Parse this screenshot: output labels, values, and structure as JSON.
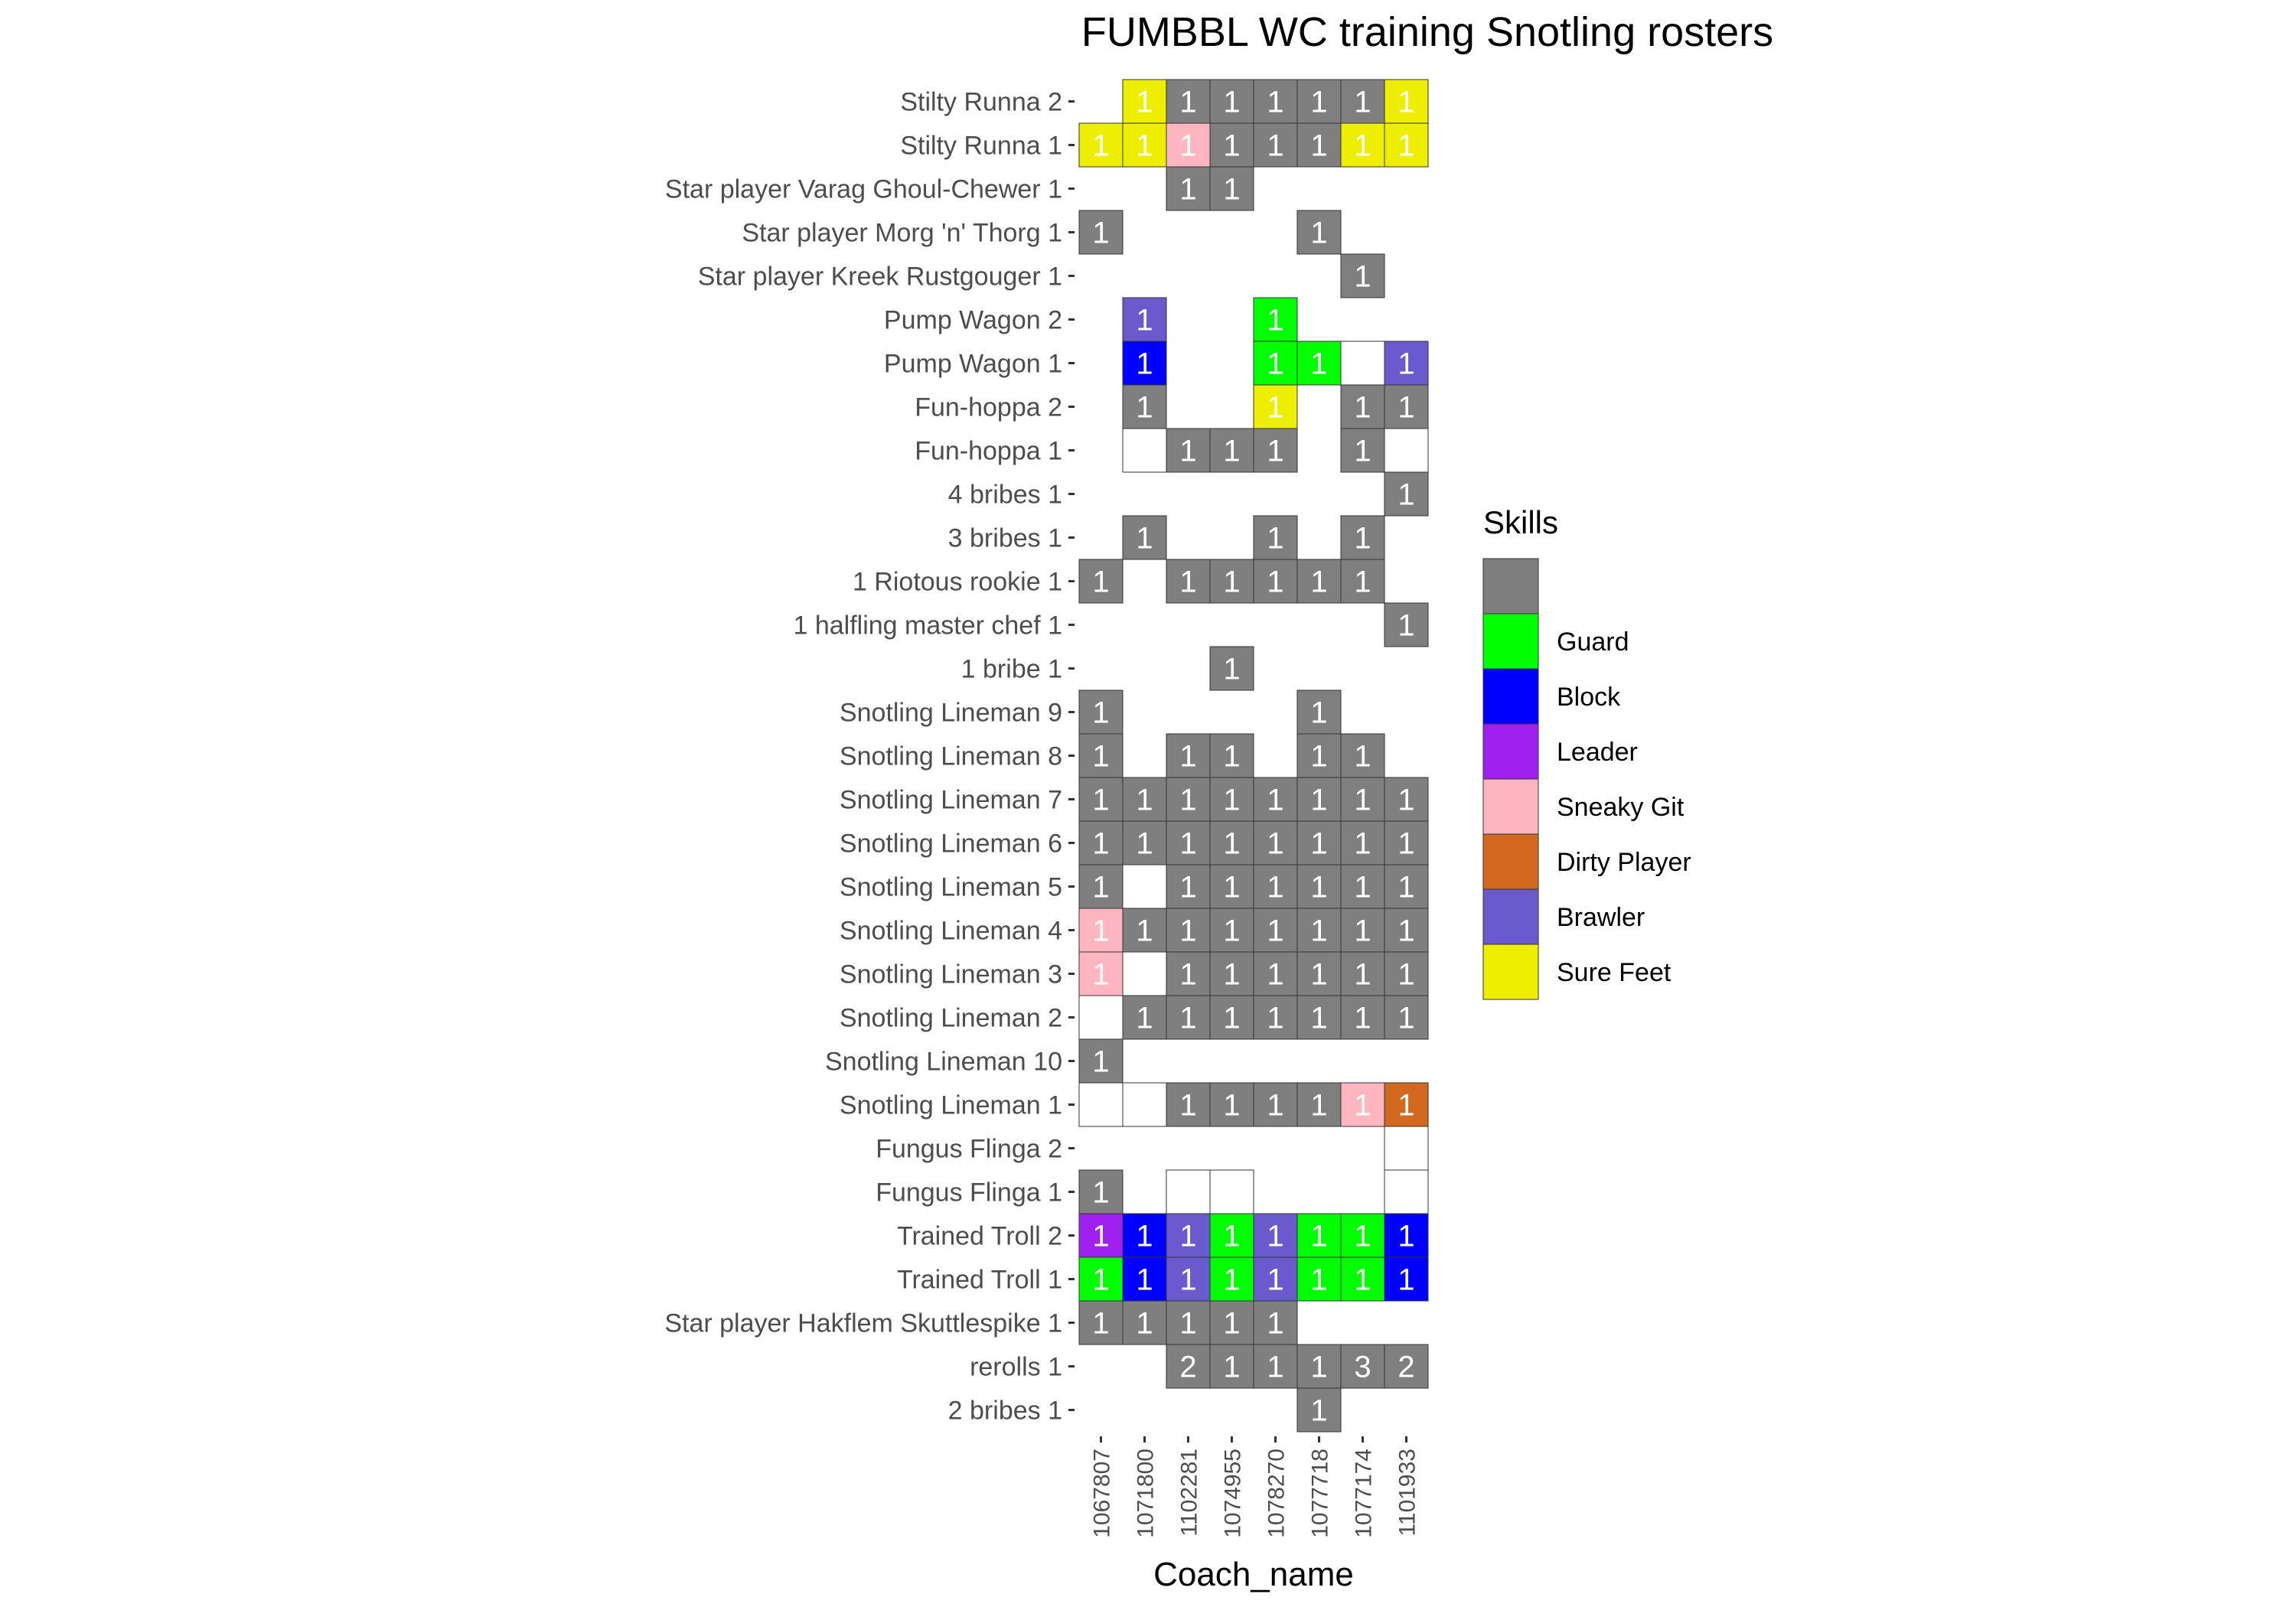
{
  "chart_data": {
    "type": "heatmap",
    "title": "FUMBBL WC training Snotling rosters",
    "xlabel": "Coach_name",
    "ylabel": "",
    "x": [
      "1067807",
      "1071800",
      "1102281",
      "1074955",
      "1078270",
      "1077718",
      "1077174",
      "1101933"
    ],
    "y": [
      "Stilty Runna 2",
      "Stilty Runna 1",
      "Star player Varag Ghoul-Chewer 1",
      "Star player Morg 'n' Thorg 1",
      "Star player Kreek Rustgouger 1",
      "Pump Wagon 2",
      "Pump Wagon 1",
      "Fun-hoppa 2",
      "Fun-hoppa 1",
      "4 bribes 1",
      "3 bribes 1",
      "1 Riotous rookie 1",
      "1 halfling master chef 1",
      "1 bribe 1",
      "Snotling Lineman 9",
      "Snotling Lineman 8",
      "Snotling Lineman 7",
      "Snotling Lineman 6",
      "Snotling Lineman 5",
      "Snotling Lineman 4",
      "Snotling Lineman 3",
      "Snotling Lineman 2",
      "Snotling Lineman 10",
      "Snotling Lineman 1",
      "Fungus Flinga 2",
      "Fungus Flinga 1",
      "Trained Troll 2",
      "Trained Troll 1",
      "Star player Hakflem Skuttlespike 1",
      "rerolls 1",
      "2 bribes 1"
    ],
    "legend": {
      "title": "Skills",
      "position": "right",
      "entries": [
        {
          "key": "none",
          "label": "",
          "color": "#7f7f7f"
        },
        {
          "key": "guard",
          "label": "Guard",
          "color": "#00ff00"
        },
        {
          "key": "block",
          "label": "Block",
          "color": "#0000ff"
        },
        {
          "key": "leader",
          "label": "Leader",
          "color": "#a020f0"
        },
        {
          "key": "sneaky",
          "label": "Sneaky Git",
          "color": "#ffb6c1"
        },
        {
          "key": "dirty",
          "label": "Dirty Player",
          "color": "#d2691e"
        },
        {
          "key": "brawler",
          "label": "Brawler",
          "color": "#6a5acd"
        },
        {
          "key": "surefeet",
          "label": "Sure Feet",
          "color": "#eeee00"
        }
      ]
    },
    "cells": [
      {
        "y": "Stilty Runna 2",
        "x": "1071800",
        "value": 1,
        "skill": "surefeet"
      },
      {
        "y": "Stilty Runna 2",
        "x": "1102281",
        "value": 1,
        "skill": "none"
      },
      {
        "y": "Stilty Runna 2",
        "x": "1074955",
        "value": 1,
        "skill": "none"
      },
      {
        "y": "Stilty Runna 2",
        "x": "1078270",
        "value": 1,
        "skill": "none"
      },
      {
        "y": "Stilty Runna 2",
        "x": "1077718",
        "value": 1,
        "skill": "none"
      },
      {
        "y": "Stilty Runna 2",
        "x": "1077174",
        "value": 1,
        "skill": "none"
      },
      {
        "y": "Stilty Runna 2",
        "x": "1101933",
        "value": 1,
        "skill": "surefeet"
      },
      {
        "y": "Stilty Runna 1",
        "x": "1067807",
        "value": 1,
        "skill": "surefeet"
      },
      {
        "y": "Stilty Runna 1",
        "x": "1071800",
        "value": 1,
        "skill": "surefeet"
      },
      {
        "y": "Stilty Runna 1",
        "x": "1102281",
        "value": 1,
        "skill": "sneaky"
      },
      {
        "y": "Stilty Runna 1",
        "x": "1074955",
        "value": 1,
        "skill": "none"
      },
      {
        "y": "Stilty Runna 1",
        "x": "1078270",
        "value": 1,
        "skill": "none"
      },
      {
        "y": "Stilty Runna 1",
        "x": "1077718",
        "value": 1,
        "skill": "none"
      },
      {
        "y": "Stilty Runna 1",
        "x": "1077174",
        "value": 1,
        "skill": "surefeet"
      },
      {
        "y": "Stilty Runna 1",
        "x": "1101933",
        "value": 1,
        "skill": "surefeet"
      },
      {
        "y": "Star player Varag Ghoul-Chewer 1",
        "x": "1102281",
        "value": 1,
        "skill": "none"
      },
      {
        "y": "Star player Varag Ghoul-Chewer 1",
        "x": "1074955",
        "value": 1,
        "skill": "none"
      },
      {
        "y": "Star player Morg 'n' Thorg 1",
        "x": "1067807",
        "value": 1,
        "skill": "none"
      },
      {
        "y": "Star player Morg 'n' Thorg 1",
        "x": "1077718",
        "value": 1,
        "skill": "none"
      },
      {
        "y": "Star player Kreek Rustgouger 1",
        "x": "1077174",
        "value": 1,
        "skill": "none"
      },
      {
        "y": "Pump Wagon 2",
        "x": "1071800",
        "value": 1,
        "skill": "brawler"
      },
      {
        "y": "Pump Wagon 2",
        "x": "1078270",
        "value": 1,
        "skill": "guard"
      },
      {
        "y": "Pump Wagon 1",
        "x": "1071800",
        "value": 1,
        "skill": "block"
      },
      {
        "y": "Pump Wagon 1",
        "x": "1078270",
        "value": 1,
        "skill": "guard"
      },
      {
        "y": "Pump Wagon 1",
        "x": "1077718",
        "value": 1,
        "skill": "guard"
      },
      {
        "y": "Pump Wagon 1",
        "x": "1077174",
        "value": null,
        "skill": "empty"
      },
      {
        "y": "Pump Wagon 1",
        "x": "1101933",
        "value": 1,
        "skill": "brawler"
      },
      {
        "y": "Fun-hoppa 2",
        "x": "1071800",
        "value": 1,
        "skill": "none"
      },
      {
        "y": "Fun-hoppa 2",
        "x": "1078270",
        "value": 1,
        "skill": "surefeet"
      },
      {
        "y": "Fun-hoppa 2",
        "x": "1077174",
        "value": 1,
        "skill": "none"
      },
      {
        "y": "Fun-hoppa 2",
        "x": "1101933",
        "value": 1,
        "skill": "none"
      },
      {
        "y": "Fun-hoppa 1",
        "x": "1071800",
        "value": null,
        "skill": "empty"
      },
      {
        "y": "Fun-hoppa 1",
        "x": "1102281",
        "value": 1,
        "skill": "none"
      },
      {
        "y": "Fun-hoppa 1",
        "x": "1074955",
        "value": 1,
        "skill": "none"
      },
      {
        "y": "Fun-hoppa 1",
        "x": "1078270",
        "value": 1,
        "skill": "none"
      },
      {
        "y": "Fun-hoppa 1",
        "x": "1077174",
        "value": 1,
        "skill": "none"
      },
      {
        "y": "Fun-hoppa 1",
        "x": "1101933",
        "value": null,
        "skill": "empty"
      },
      {
        "y": "4 bribes 1",
        "x": "1101933",
        "value": 1,
        "skill": "none"
      },
      {
        "y": "3 bribes 1",
        "x": "1071800",
        "value": 1,
        "skill": "none"
      },
      {
        "y": "3 bribes 1",
        "x": "1078270",
        "value": 1,
        "skill": "none"
      },
      {
        "y": "3 bribes 1",
        "x": "1077174",
        "value": 1,
        "skill": "none"
      },
      {
        "y": "1 Riotous rookie 1",
        "x": "1067807",
        "value": 1,
        "skill": "none"
      },
      {
        "y": "1 Riotous rookie 1",
        "x": "1102281",
        "value": 1,
        "skill": "none"
      },
      {
        "y": "1 Riotous rookie 1",
        "x": "1074955",
        "value": 1,
        "skill": "none"
      },
      {
        "y": "1 Riotous rookie 1",
        "x": "1078270",
        "value": 1,
        "skill": "none"
      },
      {
        "y": "1 Riotous rookie 1",
        "x": "1077718",
        "value": 1,
        "skill": "none"
      },
      {
        "y": "1 Riotous rookie 1",
        "x": "1077174",
        "value": 1,
        "skill": "none"
      },
      {
        "y": "1 halfling master chef 1",
        "x": "1101933",
        "value": 1,
        "skill": "none"
      },
      {
        "y": "1 bribe 1",
        "x": "1074955",
        "value": 1,
        "skill": "none"
      },
      {
        "y": "Snotling Lineman 9",
        "x": "1067807",
        "value": 1,
        "skill": "none"
      },
      {
        "y": "Snotling Lineman 9",
        "x": "1077718",
        "value": 1,
        "skill": "none"
      },
      {
        "y": "Snotling Lineman 8",
        "x": "1067807",
        "value": 1,
        "skill": "none"
      },
      {
        "y": "Snotling Lineman 8",
        "x": "1102281",
        "value": 1,
        "skill": "none"
      },
      {
        "y": "Snotling Lineman 8",
        "x": "1074955",
        "value": 1,
        "skill": "none"
      },
      {
        "y": "Snotling Lineman 8",
        "x": "1077718",
        "value": 1,
        "skill": "none"
      },
      {
        "y": "Snotling Lineman 8",
        "x": "1077174",
        "value": 1,
        "skill": "none"
      },
      {
        "y": "Snotling Lineman 7",
        "x": "1067807",
        "value": 1,
        "skill": "none"
      },
      {
        "y": "Snotling Lineman 7",
        "x": "1071800",
        "value": 1,
        "skill": "none"
      },
      {
        "y": "Snotling Lineman 7",
        "x": "1102281",
        "value": 1,
        "skill": "none"
      },
      {
        "y": "Snotling Lineman 7",
        "x": "1074955",
        "value": 1,
        "skill": "none"
      },
      {
        "y": "Snotling Lineman 7",
        "x": "1078270",
        "value": 1,
        "skill": "none"
      },
      {
        "y": "Snotling Lineman 7",
        "x": "1077718",
        "value": 1,
        "skill": "none"
      },
      {
        "y": "Snotling Lineman 7",
        "x": "1077174",
        "value": 1,
        "skill": "none"
      },
      {
        "y": "Snotling Lineman 7",
        "x": "1101933",
        "value": 1,
        "skill": "none"
      },
      {
        "y": "Snotling Lineman 6",
        "x": "1067807",
        "value": 1,
        "skill": "none"
      },
      {
        "y": "Snotling Lineman 6",
        "x": "1071800",
        "value": 1,
        "skill": "none"
      },
      {
        "y": "Snotling Lineman 6",
        "x": "1102281",
        "value": 1,
        "skill": "none"
      },
      {
        "y": "Snotling Lineman 6",
        "x": "1074955",
        "value": 1,
        "skill": "none"
      },
      {
        "y": "Snotling Lineman 6",
        "x": "1078270",
        "value": 1,
        "skill": "none"
      },
      {
        "y": "Snotling Lineman 6",
        "x": "1077718",
        "value": 1,
        "skill": "none"
      },
      {
        "y": "Snotling Lineman 6",
        "x": "1077174",
        "value": 1,
        "skill": "none"
      },
      {
        "y": "Snotling Lineman 6",
        "x": "1101933",
        "value": 1,
        "skill": "none"
      },
      {
        "y": "Snotling Lineman 5",
        "x": "1067807",
        "value": 1,
        "skill": "none"
      },
      {
        "y": "Snotling Lineman 5",
        "x": "1071800",
        "value": null,
        "skill": "empty"
      },
      {
        "y": "Snotling Lineman 5",
        "x": "1102281",
        "value": 1,
        "skill": "none"
      },
      {
        "y": "Snotling Lineman 5",
        "x": "1074955",
        "value": 1,
        "skill": "none"
      },
      {
        "y": "Snotling Lineman 5",
        "x": "1078270",
        "value": 1,
        "skill": "none"
      },
      {
        "y": "Snotling Lineman 5",
        "x": "1077718",
        "value": 1,
        "skill": "none"
      },
      {
        "y": "Snotling Lineman 5",
        "x": "1077174",
        "value": 1,
        "skill": "none"
      },
      {
        "y": "Snotling Lineman 5",
        "x": "1101933",
        "value": 1,
        "skill": "none"
      },
      {
        "y": "Snotling Lineman 4",
        "x": "1067807",
        "value": 1,
        "skill": "sneaky"
      },
      {
        "y": "Snotling Lineman 4",
        "x": "1071800",
        "value": 1,
        "skill": "none"
      },
      {
        "y": "Snotling Lineman 4",
        "x": "1102281",
        "value": 1,
        "skill": "none"
      },
      {
        "y": "Snotling Lineman 4",
        "x": "1074955",
        "value": 1,
        "skill": "none"
      },
      {
        "y": "Snotling Lineman 4",
        "x": "1078270",
        "value": 1,
        "skill": "none"
      },
      {
        "y": "Snotling Lineman 4",
        "x": "1077718",
        "value": 1,
        "skill": "none"
      },
      {
        "y": "Snotling Lineman 4",
        "x": "1077174",
        "value": 1,
        "skill": "none"
      },
      {
        "y": "Snotling Lineman 4",
        "x": "1101933",
        "value": 1,
        "skill": "none"
      },
      {
        "y": "Snotling Lineman 3",
        "x": "1067807",
        "value": 1,
        "skill": "sneaky"
      },
      {
        "y": "Snotling Lineman 3",
        "x": "1071800",
        "value": null,
        "skill": "empty"
      },
      {
        "y": "Snotling Lineman 3",
        "x": "1102281",
        "value": 1,
        "skill": "none"
      },
      {
        "y": "Snotling Lineman 3",
        "x": "1074955",
        "value": 1,
        "skill": "none"
      },
      {
        "y": "Snotling Lineman 3",
        "x": "1078270",
        "value": 1,
        "skill": "none"
      },
      {
        "y": "Snotling Lineman 3",
        "x": "1077718",
        "value": 1,
        "skill": "none"
      },
      {
        "y": "Snotling Lineman 3",
        "x": "1077174",
        "value": 1,
        "skill": "none"
      },
      {
        "y": "Snotling Lineman 3",
        "x": "1101933",
        "value": 1,
        "skill": "none"
      },
      {
        "y": "Snotling Lineman 2",
        "x": "1067807",
        "value": null,
        "skill": "empty"
      },
      {
        "y": "Snotling Lineman 2",
        "x": "1071800",
        "value": 1,
        "skill": "none"
      },
      {
        "y": "Snotling Lineman 2",
        "x": "1102281",
        "value": 1,
        "skill": "none"
      },
      {
        "y": "Snotling Lineman 2",
        "x": "1074955",
        "value": 1,
        "skill": "none"
      },
      {
        "y": "Snotling Lineman 2",
        "x": "1078270",
        "value": 1,
        "skill": "none"
      },
      {
        "y": "Snotling Lineman 2",
        "x": "1077718",
        "value": 1,
        "skill": "none"
      },
      {
        "y": "Snotling Lineman 2",
        "x": "1077174",
        "value": 1,
        "skill": "none"
      },
      {
        "y": "Snotling Lineman 2",
        "x": "1101933",
        "value": 1,
        "skill": "none"
      },
      {
        "y": "Snotling Lineman 10",
        "x": "1067807",
        "value": 1,
        "skill": "none"
      },
      {
        "y": "Snotling Lineman 1",
        "x": "1067807",
        "value": null,
        "skill": "empty"
      },
      {
        "y": "Snotling Lineman 1",
        "x": "1071800",
        "value": null,
        "skill": "empty"
      },
      {
        "y": "Snotling Lineman 1",
        "x": "1102281",
        "value": 1,
        "skill": "none"
      },
      {
        "y": "Snotling Lineman 1",
        "x": "1074955",
        "value": 1,
        "skill": "none"
      },
      {
        "y": "Snotling Lineman 1",
        "x": "1078270",
        "value": 1,
        "skill": "none"
      },
      {
        "y": "Snotling Lineman 1",
        "x": "1077718",
        "value": 1,
        "skill": "none"
      },
      {
        "y": "Snotling Lineman 1",
        "x": "1077174",
        "value": 1,
        "skill": "sneaky"
      },
      {
        "y": "Snotling Lineman 1",
        "x": "1101933",
        "value": 1,
        "skill": "dirty"
      },
      {
        "y": "Fungus Flinga 2",
        "x": "1101933",
        "value": null,
        "skill": "empty"
      },
      {
        "y": "Fungus Flinga 1",
        "x": "1067807",
        "value": 1,
        "skill": "none"
      },
      {
        "y": "Fungus Flinga 1",
        "x": "1102281",
        "value": null,
        "skill": "empty"
      },
      {
        "y": "Fungus Flinga 1",
        "x": "1074955",
        "value": null,
        "skill": "empty"
      },
      {
        "y": "Fungus Flinga 1",
        "x": "1101933",
        "value": null,
        "skill": "empty"
      },
      {
        "y": "Trained Troll 2",
        "x": "1067807",
        "value": 1,
        "skill": "leader"
      },
      {
        "y": "Trained Troll 2",
        "x": "1071800",
        "value": 1,
        "skill": "block"
      },
      {
        "y": "Trained Troll 2",
        "x": "1102281",
        "value": 1,
        "skill": "brawler"
      },
      {
        "y": "Trained Troll 2",
        "x": "1074955",
        "value": 1,
        "skill": "guard"
      },
      {
        "y": "Trained Troll 2",
        "x": "1078270",
        "value": 1,
        "skill": "brawler"
      },
      {
        "y": "Trained Troll 2",
        "x": "1077718",
        "value": 1,
        "skill": "guard"
      },
      {
        "y": "Trained Troll 2",
        "x": "1077174",
        "value": 1,
        "skill": "guard"
      },
      {
        "y": "Trained Troll 2",
        "x": "1101933",
        "value": 1,
        "skill": "block"
      },
      {
        "y": "Trained Troll 1",
        "x": "1067807",
        "value": 1,
        "skill": "guard"
      },
      {
        "y": "Trained Troll 1",
        "x": "1071800",
        "value": 1,
        "skill": "block"
      },
      {
        "y": "Trained Troll 1",
        "x": "1102281",
        "value": 1,
        "skill": "brawler"
      },
      {
        "y": "Trained Troll 1",
        "x": "1074955",
        "value": 1,
        "skill": "guard"
      },
      {
        "y": "Trained Troll 1",
        "x": "1078270",
        "value": 1,
        "skill": "brawler"
      },
      {
        "y": "Trained Troll 1",
        "x": "1077718",
        "value": 1,
        "skill": "guard"
      },
      {
        "y": "Trained Troll 1",
        "x": "1077174",
        "value": 1,
        "skill": "guard"
      },
      {
        "y": "Trained Troll 1",
        "x": "1101933",
        "value": 1,
        "skill": "block"
      },
      {
        "y": "Star player Hakflem Skuttlespike 1",
        "x": "1067807",
        "value": 1,
        "skill": "none"
      },
      {
        "y": "Star player Hakflem Skuttlespike 1",
        "x": "1071800",
        "value": 1,
        "skill": "none"
      },
      {
        "y": "Star player Hakflem Skuttlespike 1",
        "x": "1102281",
        "value": 1,
        "skill": "none"
      },
      {
        "y": "Star player Hakflem Skuttlespike 1",
        "x": "1074955",
        "value": 1,
        "skill": "none"
      },
      {
        "y": "Star player Hakflem Skuttlespike 1",
        "x": "1078270",
        "value": 1,
        "skill": "none"
      },
      {
        "y": "rerolls 1",
        "x": "1102281",
        "value": 2,
        "skill": "none"
      },
      {
        "y": "rerolls 1",
        "x": "1074955",
        "value": 1,
        "skill": "none"
      },
      {
        "y": "rerolls 1",
        "x": "1078270",
        "value": 1,
        "skill": "none"
      },
      {
        "y": "rerolls 1",
        "x": "1077718",
        "value": 1,
        "skill": "none"
      },
      {
        "y": "rerolls 1",
        "x": "1077174",
        "value": 3,
        "skill": "none"
      },
      {
        "y": "rerolls 1",
        "x": "1101933",
        "value": 2,
        "skill": "none"
      },
      {
        "y": "2 bribes 1",
        "x": "1077718",
        "value": 1,
        "skill": "none"
      }
    ]
  }
}
